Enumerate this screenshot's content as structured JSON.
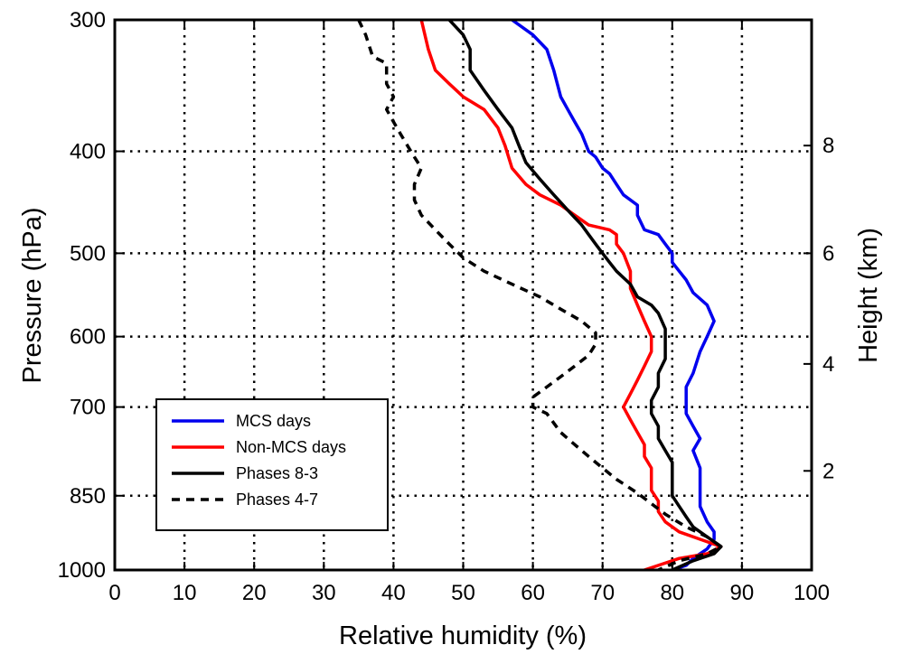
{
  "chart_data": {
    "type": "line",
    "xlabel": "Relative humidity (%)",
    "ylabel": "Pressure (hPa)",
    "y2label": "Height (km)",
    "xlim": [
      0,
      100
    ],
    "ylim": [
      300,
      1000
    ],
    "x_ticks": [
      0,
      10,
      20,
      30,
      40,
      50,
      60,
      70,
      80,
      90,
      100
    ],
    "y_ticks": [
      300,
      400,
      500,
      600,
      700,
      850,
      1000
    ],
    "y2_ticks": [
      {
        "label": "8",
        "pressure": 395
      },
      {
        "label": "6",
        "pressure": 500
      },
      {
        "label": "4",
        "pressure": 637
      },
      {
        "label": "2",
        "pressure": 805
      }
    ],
    "grid": true,
    "legend_position": "lower-left",
    "series": [
      {
        "name": "MCS days",
        "color": "#0000ee",
        "dash": false,
        "points": [
          [
            57,
            300
          ],
          [
            60,
            310
          ],
          [
            62,
            320
          ],
          [
            63,
            335
          ],
          [
            63.5,
            345
          ],
          [
            64,
            355
          ],
          [
            65,
            365
          ],
          [
            66,
            375
          ],
          [
            67,
            385
          ],
          [
            68,
            400
          ],
          [
            69,
            405
          ],
          [
            70,
            415
          ],
          [
            71,
            420
          ],
          [
            72,
            430
          ],
          [
            73,
            440
          ],
          [
            75,
            450
          ],
          [
            75,
            460
          ],
          [
            76,
            475
          ],
          [
            78,
            480
          ],
          [
            79,
            490
          ],
          [
            80,
            500
          ],
          [
            80,
            510
          ],
          [
            81,
            520
          ],
          [
            82,
            530
          ],
          [
            83,
            545
          ],
          [
            85,
            560
          ],
          [
            86,
            580
          ],
          [
            85,
            600
          ],
          [
            84,
            620
          ],
          [
            83,
            650
          ],
          [
            82,
            670
          ],
          [
            82,
            690
          ],
          [
            82,
            710
          ],
          [
            83,
            730
          ],
          [
            84,
            750
          ],
          [
            83,
            770
          ],
          [
            84,
            800
          ],
          [
            84,
            830
          ],
          [
            84,
            850
          ],
          [
            84,
            870
          ],
          [
            85,
            900
          ],
          [
            86,
            920
          ],
          [
            86,
            935
          ],
          [
            85,
            955
          ],
          [
            83,
            975
          ],
          [
            82,
            990
          ],
          [
            80,
            1000
          ]
        ]
      },
      {
        "name": "Non-MCS days",
        "color": "#ff0000",
        "dash": false,
        "points": [
          [
            44,
            300
          ],
          [
            45,
            320
          ],
          [
            46,
            335
          ],
          [
            48,
            345
          ],
          [
            50,
            355
          ],
          [
            53,
            365
          ],
          [
            55,
            380
          ],
          [
            56,
            395
          ],
          [
            57,
            415
          ],
          [
            59,
            430
          ],
          [
            61,
            440
          ],
          [
            64,
            450
          ],
          [
            66,
            460
          ],
          [
            68,
            470
          ],
          [
            71,
            475
          ],
          [
            72,
            480
          ],
          [
            72,
            490
          ],
          [
            73,
            500
          ],
          [
            74,
            520
          ],
          [
            74,
            540
          ],
          [
            75,
            560
          ],
          [
            76,
            580
          ],
          [
            77,
            600
          ],
          [
            77,
            620
          ],
          [
            76,
            640
          ],
          [
            75,
            660
          ],
          [
            74,
            680
          ],
          [
            73,
            700
          ],
          [
            74,
            720
          ],
          [
            75,
            740
          ],
          [
            76,
            760
          ],
          [
            76,
            780
          ],
          [
            77,
            800
          ],
          [
            77,
            820
          ],
          [
            77,
            840
          ],
          [
            78,
            860
          ],
          [
            78,
            880
          ],
          [
            79,
            900
          ],
          [
            81,
            920
          ],
          [
            84,
            935
          ],
          [
            87,
            950
          ],
          [
            85,
            965
          ],
          [
            81,
            975
          ],
          [
            78,
            990
          ],
          [
            76,
            1000
          ]
        ]
      },
      {
        "name": "Phases 8-3",
        "color": "#000000",
        "dash": false,
        "points": [
          [
            48,
            300
          ],
          [
            50,
            310
          ],
          [
            51,
            320
          ],
          [
            51,
            335
          ],
          [
            53,
            350
          ],
          [
            55,
            365
          ],
          [
            57,
            380
          ],
          [
            58,
            395
          ],
          [
            59,
            410
          ],
          [
            61,
            425
          ],
          [
            63,
            440
          ],
          [
            65,
            455
          ],
          [
            67,
            470
          ],
          [
            68,
            480
          ],
          [
            69,
            490
          ],
          [
            70,
            500
          ],
          [
            71,
            510
          ],
          [
            72,
            520
          ],
          [
            74,
            535
          ],
          [
            75,
            550
          ],
          [
            77,
            560
          ],
          [
            78,
            570
          ],
          [
            79,
            590
          ],
          [
            79,
            610
          ],
          [
            79,
            630
          ],
          [
            78,
            650
          ],
          [
            78,
            670
          ],
          [
            77,
            690
          ],
          [
            77,
            710
          ],
          [
            78,
            730
          ],
          [
            78,
            750
          ],
          [
            79,
            770
          ],
          [
            80,
            790
          ],
          [
            80,
            810
          ],
          [
            80,
            830
          ],
          [
            80,
            850
          ],
          [
            81,
            870
          ],
          [
            82,
            890
          ],
          [
            83,
            910
          ],
          [
            85,
            930
          ],
          [
            87,
            950
          ],
          [
            86,
            965
          ],
          [
            83,
            980
          ],
          [
            80,
            1000
          ]
        ]
      },
      {
        "name": "Phases 4-7",
        "color": "#000000",
        "dash": true,
        "points": [
          [
            35,
            300
          ],
          [
            36,
            310
          ],
          [
            37,
            325
          ],
          [
            39,
            330
          ],
          [
            39,
            345
          ],
          [
            40,
            355
          ],
          [
            39,
            365
          ],
          [
            40,
            375
          ],
          [
            41,
            385
          ],
          [
            42,
            395
          ],
          [
            43,
            405
          ],
          [
            44,
            415
          ],
          [
            43,
            430
          ],
          [
            43,
            445
          ],
          [
            44,
            460
          ],
          [
            46,
            475
          ],
          [
            48,
            490
          ],
          [
            50,
            505
          ],
          [
            53,
            520
          ],
          [
            57,
            535
          ],
          [
            61,
            550
          ],
          [
            64,
            565
          ],
          [
            67,
            580
          ],
          [
            69,
            595
          ],
          [
            69,
            610
          ],
          [
            68,
            625
          ],
          [
            66,
            640
          ],
          [
            64,
            655
          ],
          [
            62,
            670
          ],
          [
            60,
            685
          ],
          [
            60,
            700
          ],
          [
            62,
            710
          ],
          [
            63,
            725
          ],
          [
            64,
            740
          ],
          [
            66,
            760
          ],
          [
            68,
            780
          ],
          [
            70,
            800
          ],
          [
            72,
            820
          ],
          [
            75,
            845
          ],
          [
            77,
            865
          ],
          [
            79,
            885
          ],
          [
            82,
            910
          ],
          [
            85,
            930
          ],
          [
            87,
            950
          ],
          [
            85,
            965
          ],
          [
            81,
            980
          ],
          [
            78,
            1000
          ]
        ]
      }
    ]
  }
}
